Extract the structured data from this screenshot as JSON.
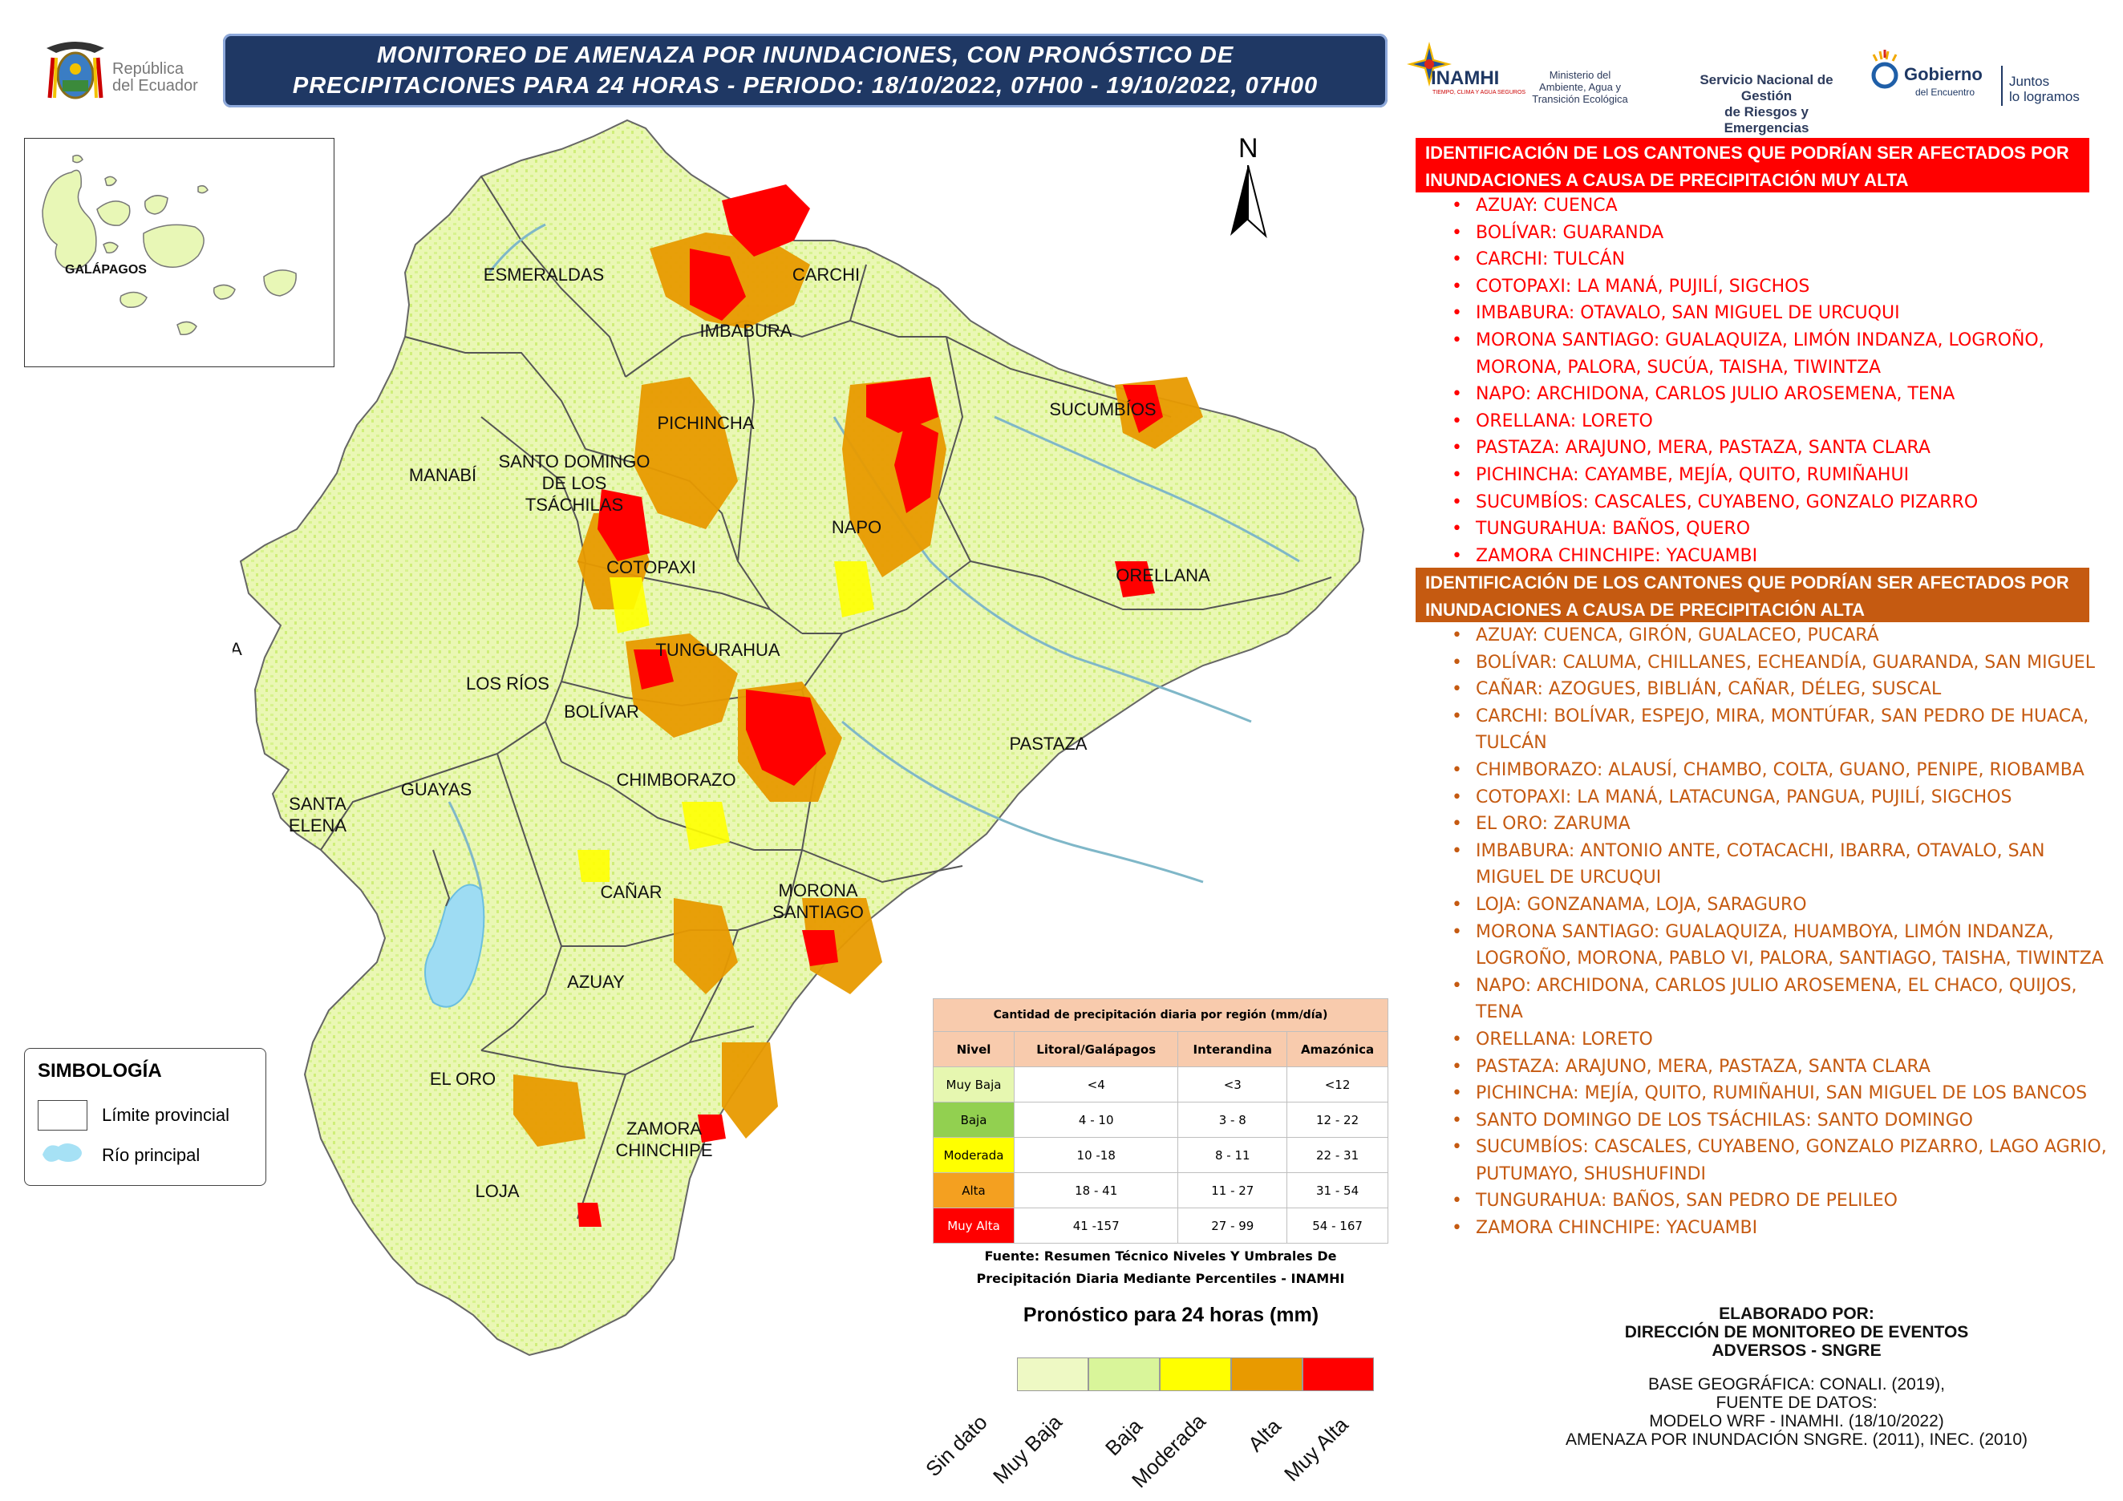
{
  "title": {
    "line1": "MONITOREO DE AMENAZA POR INUNDACIONES, CON PRONÓSTICO DE",
    "line2": "PRECIPITACIONES  PARA 24  HORAS - PERIODO: 18/10/2022, 07H00 - 19/10/2022, 07H00"
  },
  "logos": {
    "republica_line1": "República",
    "republica_line2": "del Ecuador",
    "inamhi": "INAMHI",
    "inamhi_sub": "TIEMPO, CLIMA Y AGUA SEGUROS",
    "ministerio_line1": "Ministerio del",
    "ministerio_line2": "Ambiente, Agua y",
    "ministerio_line3": "Transición Ecológica",
    "sngre_line1": "Servicio Nacional de Gestión",
    "sngre_line2": "de Riesgos y Emergencias",
    "gobierno_line1": "Gobierno",
    "gobierno_line2": "del Encuentro",
    "juntos_line1": "Juntos",
    "juntos_line2": "lo logramos"
  },
  "north_label": "N",
  "inset_label": "GALÁPAGOS",
  "provinces": {
    "esmeraldas": "ESMERALDAS",
    "carchi": "CARCHI",
    "imbabura": "IMBABURA",
    "sucumbios": "SUCUMBÍOS",
    "pichincha": "PICHINCHA",
    "manabi": "MANABÍ",
    "sdt1": "SANTO DOMINGO",
    "sdt2": "DE LOS",
    "sdt3": "TSÁCHILAS",
    "napo": "NAPO",
    "cotopaxi": "COTOPAXI",
    "orellana": "ORELLANA",
    "isla": "ISLA",
    "tungurahua": "TUNGURAHUA",
    "losrios": "LOS RÍOS",
    "bolivar": "BOLÍVAR",
    "pastaza": "PASTAZA",
    "chimborazo": "CHIMBORAZO",
    "guayas": "GUAYAS",
    "santaelena1": "SANTA",
    "santaelena2": "ELENA",
    "canar": "CAÑAR",
    "morona1": "MORONA",
    "morona2": "SANTIAGO",
    "azuay": "AZUAY",
    "eloro": "EL ORO",
    "zamora1": "ZAMORA",
    "zamora2": "CHINCHIPE",
    "loja": "LOJA"
  },
  "symbology": {
    "title": "SIMBOLOGÍA",
    "item1": "Límite provincial",
    "item2": "Río principal"
  },
  "muy_alta": {
    "header_line1": "IDENTIFICACIÓN DE LOS CANTONES QUE PODRÍAN SER AFECTADOS POR",
    "header_line2": "INUNDACIONES A CAUSA DE  PRECIPITACIÓN MUY ALTA",
    "items": [
      "AZUAY: CUENCA",
      "BOLÍVAR: GUARANDA",
      "CARCHI: TULCÁN",
      "COTOPAXI: LA MANÁ, PUJILÍ, SIGCHOS",
      "IMBABURA: OTAVALO, SAN MIGUEL DE URCUQUI",
      "MORONA SANTIAGO: GUALAQUIZA, LIMÓN INDANZA, LOGROÑO, MORONA, PALORA, SUCÚA, TAISHA, TIWINTZA",
      "NAPO: ARCHIDONA, CARLOS JULIO AROSEMENA, TENA",
      "ORELLANA: LORETO",
      "PASTAZA: ARAJUNO, MERA, PASTAZA, SANTA CLARA",
      "PICHINCHA: CAYAMBE, MEJÍA, QUITO, RUMIÑAHUI",
      "SUCUMBÍOS: CASCALES, CUYABENO, GONZALO PIZARRO",
      "TUNGURAHUA: BAÑOS, QUERO",
      "ZAMORA CHINCHIPE: YACUAMBI"
    ]
  },
  "alta": {
    "header_line1": "IDENTIFICACIÓN DE LOS CANTONES QUE PODRÍAN SER AFECTADOS POR",
    "header_line2": "INUNDACIONES A CAUSA DE  PRECIPITACIÓN  ALTA",
    "items": [
      "AZUAY: CUENCA, GIRÓN, GUALACEO, PUCARÁ",
      "BOLÍVAR: CALUMA, CHILLANES, ECHEANDÍA, GUARANDA, SAN MIGUEL",
      "CAÑAR: AZOGUES, BIBLIÁN, CAÑAR, DÉLEG, SUSCAL",
      "CARCHI: BOLÍVAR, ESPEJO, MIRA, MONTÚFAR, SAN PEDRO DE HUACA, TULCÁN",
      "CHIMBORAZO: ALAUSÍ, CHAMBO, COLTA, GUANO, PENIPE, RIOBAMBA",
      "COTOPAXI: LA MANÁ, LATACUNGA, PANGUA, PUJILÍ, SIGCHOS",
      "EL ORO: ZARUMA",
      "IMBABURA: ANTONIO ANTE, COTACACHI, IBARRA, OTAVALO, SAN MIGUEL DE URCUQUI",
      "LOJA: GONZANAMA, LOJA, SARAGURO",
      "MORONA SANTIAGO: GUALAQUIZA, HUAMBOYA, LIMÓN INDANZA, LOGROÑO, MORONA, PABLO VI, PALORA, SANTIAGO, TAISHA, TIWINTZA",
      "NAPO: ARCHIDONA, CARLOS JULIO AROSEMENA, EL CHACO, QUIJOS, TENA",
      "ORELLANA: LORETO",
      "PASTAZA: ARAJUNO, MERA, PASTAZA, SANTA CLARA",
      "PICHINCHA: MEJÍA, QUITO, RUMIÑAHUI, SAN MIGUEL DE LOS BANCOS",
      "SANTO DOMINGO DE LOS TSÁCHILAS: SANTO DOMINGO",
      "SUCUMBÍOS: CASCALES, CUYABENO, GONZALO PIZARRO, LAGO AGRIO, PUTUMAYO, SHUSHUFINDI",
      "TUNGURAHUA: BAÑOS, SAN PEDRO DE PELILEO",
      "ZAMORA CHINCHIPE: YACUAMBI"
    ]
  },
  "precip_table": {
    "title": "Cantidad de precipitación diaria por región (mm/día)",
    "headers": [
      "Nivel",
      "Litoral/Galápagos",
      "Interandina",
      "Amazónica"
    ],
    "rows": [
      {
        "level": "Muy Baja",
        "color": "#e6f7b0",
        "litoral": "<4",
        "interandina": "<3",
        "amazonica": "<12"
      },
      {
        "level": "Baja",
        "color": "#92d050",
        "litoral": "4 - 10",
        "interandina": "3 - 8",
        "amazonica": "12 - 22"
      },
      {
        "level": "Moderada",
        "color": "#ffff00",
        "litoral": "10 -18",
        "interandina": "8 - 11",
        "amazonica": "22 - 31"
      },
      {
        "level": "Alta",
        "color": "#f4a020",
        "litoral": "18 - 41",
        "interandina": "11 - 27",
        "amazonica": "31 - 54"
      },
      {
        "level": "Muy Alta",
        "color": "#ff0000",
        "litoral": "41 -157",
        "interandina": "27 - 99",
        "amazonica": "54 - 167"
      }
    ],
    "source_line1": "Fuente: Resumen Técnico Niveles Y Umbrales De",
    "source_line2": "Precipitación Diaria Mediante Percentiles - INAMHI"
  },
  "legend": {
    "title": "Pronóstico para 24 horas (mm)",
    "labels": [
      "Sin dato",
      "Muy Baja",
      "Baja",
      "Moderada",
      "Alta",
      "Muy Alta"
    ],
    "colors": [
      "#eef9c4",
      "#d9f59a",
      "#ffff00",
      "#e89a00",
      "#ff0000"
    ]
  },
  "credits": {
    "line1": "ELABORADO POR:",
    "line2": "DIRECCIÓN DE MONITOREO DE EVENTOS",
    "line3": "ADVERSOS - SNGRE",
    "line4": "BASE GEOGRÁFICA: CONALI. (2019),",
    "line5": "FUENTE DE DATOS:",
    "line6": "MODELO WRF - INAMHI. (18/10/2022)",
    "line7": "AMENAZA POR INUNDACIÓN SNGRE. (2011), INEC. (2010)"
  }
}
